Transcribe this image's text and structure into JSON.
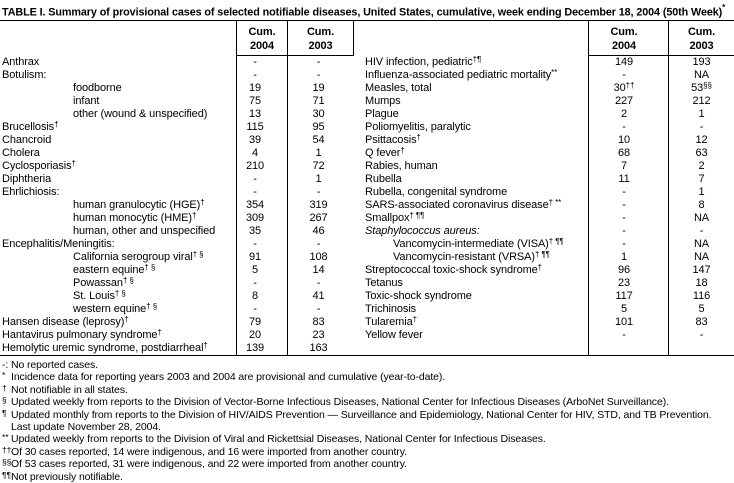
{
  "title": "TABLE I. Summary of provisional cases of selected notifiable diseases, United States, cumulative, week ending December 18, 2004 (50th Week)",
  "title_sup": "*",
  "columns": {
    "cum_label": "Cum.",
    "year_2004": "2004",
    "year_2003": "2003"
  },
  "left_rows": [
    {
      "label": "Anthrax",
      "v2004": "-",
      "v2003": "-"
    },
    {
      "label": "Botulism:",
      "v2004": "-",
      "v2003": "-"
    },
    {
      "label": "foodborne",
      "indent": true,
      "v2004": "19",
      "v2003": "19"
    },
    {
      "label": "infant",
      "indent": true,
      "v2004": "75",
      "v2003": "71"
    },
    {
      "label": "other (wound & unspecified)",
      "indent": true,
      "v2004": "13",
      "v2003": "30"
    },
    {
      "label": "Brucellosis",
      "sup": "†",
      "v2004": "115",
      "v2003": "95"
    },
    {
      "label": "Chancroid",
      "v2004": "39",
      "v2003": "54"
    },
    {
      "label": "Cholera",
      "v2004": "4",
      "v2003": "1"
    },
    {
      "label": "Cyclosporiasis",
      "sup": "†",
      "v2004": "210",
      "v2003": "72"
    },
    {
      "label": "Diphtheria",
      "v2004": "-",
      "v2003": "1"
    },
    {
      "label": "Ehrlichiosis:",
      "v2004": "-",
      "v2003": "-"
    },
    {
      "label": "human granulocytic (HGE)",
      "sup": "†",
      "indent": true,
      "v2004": "354",
      "v2003": "319"
    },
    {
      "label": "human monocytic (HME)",
      "sup": "†",
      "indent": true,
      "v2004": "309",
      "v2003": "267"
    },
    {
      "label": "human, other and unspecified",
      "indent": true,
      "v2004": "35",
      "v2003": "46"
    },
    {
      "label": "Encephalitis/Meningitis:",
      "v2004": "-",
      "v2003": "-"
    },
    {
      "label": "California serogroup viral",
      "sup": "† §",
      "indent": true,
      "v2004": "91",
      "v2003": "108"
    },
    {
      "label": "eastern equine",
      "sup": "† §",
      "indent": true,
      "v2004": "5",
      "v2003": "14"
    },
    {
      "label": "Powassan",
      "sup": "† §",
      "indent": true,
      "v2004": "-",
      "v2003": "-"
    },
    {
      "label": "St. Louis",
      "sup": "† §",
      "indent": true,
      "v2004": "8",
      "v2003": "41"
    },
    {
      "label": "western equine",
      "sup": "† §",
      "indent": true,
      "v2004": "-",
      "v2003": "-"
    },
    {
      "label": "Hansen disease (leprosy)",
      "sup": "†",
      "v2004": "79",
      "v2003": "83"
    },
    {
      "label": "Hantavirus pulmonary syndrome",
      "sup": "†",
      "v2004": "20",
      "v2003": "23"
    },
    {
      "label": "Hemolytic uremic syndrome, postdiarrheal",
      "sup": "†",
      "v2004": "139",
      "v2003": "163"
    }
  ],
  "right_rows": [
    {
      "label": "HIV infection, pediatric",
      "sup": "†¶",
      "v2004": "149",
      "v2003": "193"
    },
    {
      "label": "Influenza-associated pediatric mortality",
      "sup": "**",
      "v2004": "-",
      "v2003": "NA"
    },
    {
      "label": "Measles, total",
      "v2004": "30",
      "s2004": "††",
      "v2003": "53",
      "s2003": "§§"
    },
    {
      "label": "Mumps",
      "v2004": "227",
      "v2003": "212"
    },
    {
      "label": "Plague",
      "v2004": "2",
      "v2003": "1"
    },
    {
      "label": "Poliomyelitis, paralytic",
      "v2004": "-",
      "v2003": "-"
    },
    {
      "label": "Psittacosis",
      "sup": "†",
      "v2004": "10",
      "v2003": "12"
    },
    {
      "label": "Q fever",
      "sup": "†",
      "v2004": "68",
      "v2003": "63"
    },
    {
      "label": "Rabies, human",
      "v2004": "7",
      "v2003": "2"
    },
    {
      "label": "Rubella",
      "v2004": "11",
      "v2003": "7"
    },
    {
      "label": "Rubella, congenital syndrome",
      "v2004": "-",
      "v2003": "1"
    },
    {
      "label": "SARS-associated coronavirus disease",
      "sup": "† **",
      "v2004": "-",
      "v2003": "8"
    },
    {
      "label": "Smallpox",
      "sup": "† ¶¶",
      "v2004": "-",
      "v2003": "NA"
    },
    {
      "label": "Staphylococcus aureus:",
      "italic": true,
      "v2004": "-",
      "v2003": "-"
    },
    {
      "label": "Vancomycin-intermediate (VISA)",
      "sup": "† ¶¶",
      "indent": true,
      "v2004": "-",
      "v2003": "NA"
    },
    {
      "label": "Vancomycin-resistant (VRSA)",
      "sup": "† ¶¶",
      "indent": true,
      "v2004": "1",
      "v2003": "NA"
    },
    {
      "label": "Streptococcal toxic-shock syndrome",
      "sup": "†",
      "v2004": "96",
      "v2003": "147"
    },
    {
      "label": "Tetanus",
      "v2004": "23",
      "v2003": "18"
    },
    {
      "label": "Toxic-shock syndrome",
      "v2004": "117",
      "v2003": "116"
    },
    {
      "label": "Trichinosis",
      "v2004": "5",
      "v2003": "5"
    },
    {
      "label": "Tularemia",
      "sup": "†",
      "v2004": "101",
      "v2003": "83"
    },
    {
      "label": "Yellow fever",
      "v2004": "-",
      "v2003": "-"
    },
    {
      "label": "",
      "v2004": "",
      "v2003": ""
    }
  ],
  "footnotes": [
    {
      "marker": "-:",
      "raised": false,
      "text": "No reported cases."
    },
    {
      "marker": "*",
      "raised": true,
      "text": "Incidence data for reporting years 2003 and 2004 are provisional and cumulative (year-to-date)."
    },
    {
      "marker": "†",
      "raised": true,
      "text": "Not notifiable in all states."
    },
    {
      "marker": "§",
      "raised": true,
      "text": "Updated weekly from reports to the Division of Vector-Borne Infectious Diseases, National Center for Infectious Diseases (ArboNet Surveillance)."
    },
    {
      "marker": "¶",
      "raised": true,
      "text": "Updated monthly from reports to the Division of HIV/AIDS Prevention — Surveillance and Epidemiology, National Center for HIV, STD, and TB Prevention."
    },
    {
      "marker": "",
      "raised": false,
      "text": "Last update November 28, 2004."
    },
    {
      "marker": "**",
      "raised": true,
      "text": "Updated weekly from reports to the Division of Viral and Rickettsial Diseases, National Center for Infectious Diseases."
    },
    {
      "marker": "††",
      "raised": true,
      "text": "Of 30 cases reported, 14 were indigenous, and 16 were imported from another country."
    },
    {
      "marker": "§§",
      "raised": true,
      "text": "Of 53 cases reported, 31 were indigenous, and 22 were imported from another country."
    },
    {
      "marker": "¶¶",
      "raised": true,
      "text": "Not previously notifiable."
    }
  ],
  "colors": {
    "text": "#000000",
    "background": "#ffffff",
    "border": "#000000"
  }
}
